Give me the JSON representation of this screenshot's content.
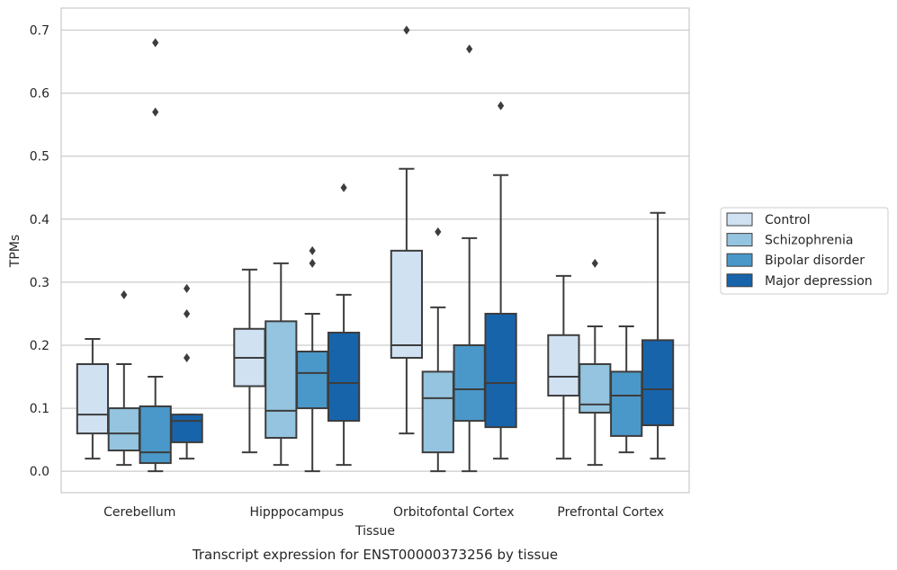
{
  "chart_data": {
    "type": "box",
    "caption": "Transcript expression for ENST00000373256 by tissue",
    "xlabel": "Tissue",
    "ylabel": "TPMs",
    "ylim": [
      -0.034,
      0.735
    ],
    "yticks": [
      0.0,
      0.1,
      0.2,
      0.3,
      0.4,
      0.5,
      0.6,
      0.7
    ],
    "ytick_labels": [
      "0.0",
      "0.1",
      "0.2",
      "0.3",
      "0.4",
      "0.5",
      "0.6",
      "0.7"
    ],
    "grid": "horizontal",
    "legend_position": "right",
    "categories": [
      "Cerebellum",
      "Hipppocampus",
      "Orbitofontal Cortex",
      "Prefrontal Cortex"
    ],
    "series": [
      {
        "name": "Control",
        "color": "#d0e1f2",
        "boxes": [
          {
            "whisker_low": 0.02,
            "q1": 0.06,
            "median": 0.09,
            "q3": 0.17,
            "whisker_high": 0.21,
            "outliers": []
          },
          {
            "whisker_low": 0.03,
            "q1": 0.135,
            "median": 0.18,
            "q3": 0.226,
            "whisker_high": 0.32,
            "outliers": []
          },
          {
            "whisker_low": 0.06,
            "q1": 0.18,
            "median": 0.2,
            "q3": 0.35,
            "whisker_high": 0.48,
            "outliers": [
              0.7
            ]
          },
          {
            "whisker_low": 0.02,
            "q1": 0.12,
            "median": 0.15,
            "q3": 0.216,
            "whisker_high": 0.31,
            "outliers": []
          }
        ]
      },
      {
        "name": "Schizophrenia",
        "color": "#94c4df",
        "boxes": [
          {
            "whisker_low": 0.01,
            "q1": 0.033,
            "median": 0.06,
            "q3": 0.1,
            "whisker_high": 0.17,
            "outliers": [
              0.28
            ]
          },
          {
            "whisker_low": 0.01,
            "q1": 0.053,
            "median": 0.096,
            "q3": 0.238,
            "whisker_high": 0.33,
            "outliers": []
          },
          {
            "whisker_low": 0.0,
            "q1": 0.03,
            "median": 0.116,
            "q3": 0.158,
            "whisker_high": 0.26,
            "outliers": [
              0.38
            ]
          },
          {
            "whisker_low": 0.01,
            "q1": 0.093,
            "median": 0.106,
            "q3": 0.17,
            "whisker_high": 0.23,
            "outliers": [
              0.33
            ]
          }
        ]
      },
      {
        "name": "Bipolar disorder",
        "color": "#4a98c9",
        "boxes": [
          {
            "whisker_low": 0.0,
            "q1": 0.013,
            "median": 0.03,
            "q3": 0.103,
            "whisker_high": 0.15,
            "outliers": [
              0.57,
              0.68
            ]
          },
          {
            "whisker_low": 0.0,
            "q1": 0.1,
            "median": 0.156,
            "q3": 0.19,
            "whisker_high": 0.25,
            "outliers": [
              0.33,
              0.35
            ]
          },
          {
            "whisker_low": 0.0,
            "q1": 0.08,
            "median": 0.13,
            "q3": 0.2,
            "whisker_high": 0.37,
            "outliers": [
              0.67
            ]
          },
          {
            "whisker_low": 0.03,
            "q1": 0.056,
            "median": 0.12,
            "q3": 0.158,
            "whisker_high": 0.23,
            "outliers": []
          }
        ]
      },
      {
        "name": "Major depression",
        "color": "#1764ab",
        "boxes": [
          {
            "whisker_low": 0.02,
            "q1": 0.046,
            "median": 0.08,
            "q3": 0.09,
            "whisker_high": 0.09,
            "outliers": [
              0.18,
              0.25,
              0.29
            ]
          },
          {
            "whisker_low": 0.01,
            "q1": 0.08,
            "median": 0.14,
            "q3": 0.22,
            "whisker_high": 0.28,
            "outliers": [
              0.45
            ]
          },
          {
            "whisker_low": 0.02,
            "q1": 0.07,
            "median": 0.14,
            "q3": 0.25,
            "whisker_high": 0.47,
            "outliers": [
              0.58
            ]
          },
          {
            "whisker_low": 0.02,
            "q1": 0.073,
            "median": 0.13,
            "q3": 0.208,
            "whisker_high": 0.41,
            "outliers": []
          }
        ]
      }
    ]
  }
}
